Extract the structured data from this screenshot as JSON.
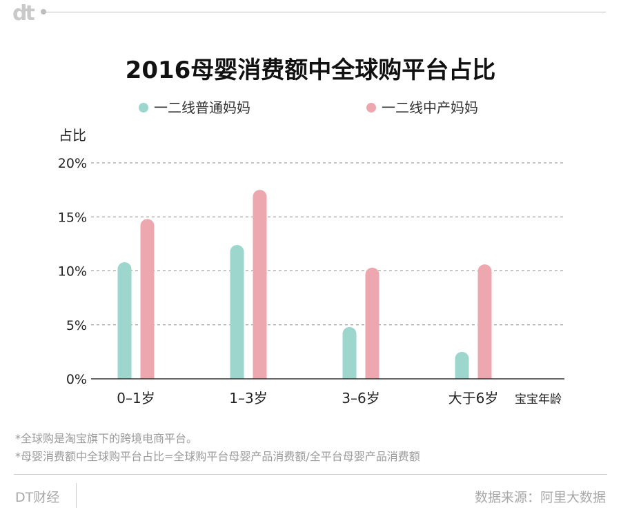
{
  "logo": "dt",
  "footer": {
    "note1": "*全球购是淘宝旗下的跨境电商平台。",
    "note2": "*母婴消费额中全球购平台占比=全球购平台母婴产品消费额/全平台母婴产品消费额",
    "brand": "DT财经",
    "source": "数据来源：阿里大数据"
  },
  "chart_data": {
    "type": "bar",
    "title": "2016母婴消费额中全球购平台占比",
    "ylabel": "占比",
    "xlabel": "宝宝年龄",
    "categories": [
      "0–1岁",
      "1–3岁",
      "3–6岁",
      "大于6岁"
    ],
    "series": [
      {
        "name": "一二线普通妈妈",
        "color": "#9dd6cc",
        "values": [
          10.8,
          12.4,
          4.8,
          2.5
        ]
      },
      {
        "name": "一二线中产妈妈",
        "color": "#eca7af",
        "values": [
          14.8,
          17.5,
          10.3,
          10.6
        ]
      }
    ],
    "ylim": [
      0,
      20
    ],
    "yticks": [
      0,
      5,
      10,
      15,
      20
    ],
    "ytick_labels": [
      "0%",
      "5%",
      "10%",
      "15%",
      "20%"
    ],
    "grid": true,
    "legend_position": "top"
  }
}
